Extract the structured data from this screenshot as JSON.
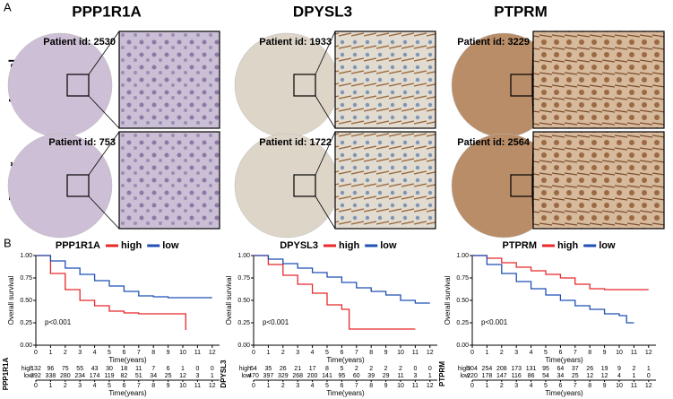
{
  "panel_a": {
    "label": "A",
    "rows": [
      "Normal",
      "Tumor"
    ],
    "columns": [
      {
        "gene": "PPP1R1A",
        "patients": [
          "Patient id: 2530",
          "Patient id: 753"
        ]
      },
      {
        "gene": "DPYSL3",
        "patients": [
          "Patient id: 1933",
          "Patient id: 1722"
        ]
      },
      {
        "gene": "PTPRM",
        "patients": [
          "Patient id: 3229",
          "Patient id: 2564"
        ]
      }
    ]
  },
  "panel_b": {
    "label": "B"
  },
  "chart_data": [
    {
      "type": "step",
      "title": "PPP1R1A",
      "ylabel": "Overall survival",
      "xlabel": "Time(years)",
      "annotation": "p<0.001",
      "xlim": [
        0,
        12.5
      ],
      "ylim": [
        0,
        1
      ],
      "xticks": [
        0,
        1,
        2,
        3,
        4,
        5,
        6,
        7,
        8,
        9,
        10,
        11,
        12
      ],
      "yticks": [
        {
          "value": 0,
          "label": "0.00"
        },
        {
          "value": 0.25,
          "label": "0.25"
        },
        {
          "value": 0.5,
          "label": "0.50"
        },
        {
          "value": 0.75,
          "label": "0.75"
        },
        {
          "value": 1,
          "label": "1.00"
        }
      ],
      "series": [
        {
          "name": "high",
          "color": "#e8282b",
          "x": [
            0,
            1,
            2,
            3,
            4,
            5,
            6,
            7,
            8,
            9,
            10,
            10.2
          ],
          "values": [
            1,
            0.8,
            0.62,
            0.5,
            0.44,
            0.38,
            0.36,
            0.35,
            0.35,
            0.35,
            0.35,
            0.17
          ],
          "at_risk": [
            132,
            96,
            75,
            55,
            43,
            30,
            18,
            11,
            7,
            6,
            1,
            0,
            0
          ]
        },
        {
          "name": "low",
          "color": "#1f4fb4",
          "x": [
            0,
            1,
            2,
            3,
            4,
            5,
            6,
            7,
            8,
            9,
            10,
            12
          ],
          "values": [
            1,
            0.94,
            0.86,
            0.79,
            0.72,
            0.66,
            0.6,
            0.55,
            0.54,
            0.53,
            0.53,
            0.53
          ],
          "at_risk": [
            392,
            338,
            280,
            234,
            174,
            119,
            82,
            51,
            34,
            25,
            12,
            3,
            1
          ]
        }
      ]
    },
    {
      "type": "step",
      "title": "DPYSL3",
      "ylabel": "Overall survival",
      "xlabel": "Time(years)",
      "annotation": "p<0.001",
      "xlim": [
        0,
        12.5
      ],
      "ylim": [
        0,
        1
      ],
      "xticks": [
        0,
        1,
        2,
        3,
        4,
        5,
        6,
        7,
        8,
        9,
        10,
        11,
        12
      ],
      "yticks": [
        {
          "value": 0,
          "label": "0.00"
        },
        {
          "value": 0.25,
          "label": "0.25"
        },
        {
          "value": 0.5,
          "label": "0.50"
        },
        {
          "value": 0.75,
          "label": "0.75"
        },
        {
          "value": 1,
          "label": "1.00"
        }
      ],
      "series": [
        {
          "name": "high",
          "color": "#e8282b",
          "x": [
            0,
            1,
            2,
            3,
            4,
            5,
            6,
            6.5,
            7,
            8,
            9,
            10,
            11
          ],
          "values": [
            1,
            0.9,
            0.78,
            0.68,
            0.58,
            0.45,
            0.4,
            0.18,
            0.18,
            0.18,
            0.18,
            0.18,
            0.18
          ],
          "at_risk": [
            54,
            35,
            26,
            21,
            17,
            8,
            5,
            2,
            2,
            2,
            2,
            0,
            0
          ]
        },
        {
          "name": "low",
          "color": "#1f4fb4",
          "x": [
            0,
            1,
            2,
            3,
            4,
            5,
            6,
            7,
            8,
            9,
            10,
            11,
            12
          ],
          "values": [
            1,
            0.96,
            0.91,
            0.86,
            0.81,
            0.76,
            0.7,
            0.64,
            0.6,
            0.56,
            0.5,
            0.47,
            0.47
          ],
          "at_risk": [
            470,
            397,
            329,
            268,
            200,
            141,
            95,
            60,
            39,
            29,
            11,
            3,
            1
          ]
        }
      ]
    },
    {
      "type": "step",
      "title": "PTPRM",
      "ylabel": "Overall survival",
      "xlabel": "Time(years)",
      "annotation": "p<0.001",
      "xlim": [
        0,
        12.5
      ],
      "ylim": [
        0,
        1
      ],
      "xticks": [
        0,
        1,
        2,
        3,
        4,
        5,
        6,
        7,
        8,
        9,
        10,
        11,
        12
      ],
      "yticks": [
        {
          "value": 0,
          "label": "0.00"
        },
        {
          "value": 0.25,
          "label": "0.25"
        },
        {
          "value": 0.5,
          "label": "0.50"
        },
        {
          "value": 0.75,
          "label": "0.75"
        },
        {
          "value": 1,
          "label": "1.00"
        }
      ],
      "series": [
        {
          "name": "high",
          "color": "#e8282b",
          "x": [
            0,
            1,
            2,
            3,
            4,
            5,
            6,
            7,
            8,
            9,
            10,
            11,
            12
          ],
          "values": [
            1,
            0.97,
            0.92,
            0.87,
            0.83,
            0.79,
            0.75,
            0.68,
            0.63,
            0.62,
            0.62,
            0.62,
            0.62
          ],
          "at_risk": [
            304,
            254,
            208,
            173,
            131,
            95,
            64,
            37,
            26,
            19,
            9,
            2,
            1
          ]
        },
        {
          "name": "low",
          "color": "#1f4fb4",
          "x": [
            0,
            1,
            2,
            3,
            4,
            5,
            6,
            7,
            8,
            9,
            10,
            10.5,
            11
          ],
          "values": [
            1,
            0.9,
            0.8,
            0.71,
            0.63,
            0.56,
            0.5,
            0.44,
            0.4,
            0.35,
            0.33,
            0.25,
            0.25
          ],
          "at_risk": [
            220,
            178,
            147,
            116,
            86,
            54,
            34,
            25,
            12,
            12,
            4,
            1,
            0
          ]
        }
      ]
    }
  ]
}
